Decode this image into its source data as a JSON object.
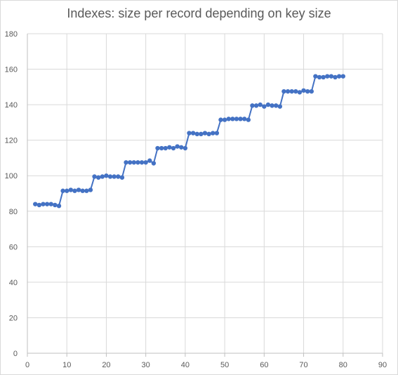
{
  "chart_data": {
    "type": "line",
    "title": "Indexes: size per record depending on key size",
    "xlabel": "",
    "ylabel": "",
    "xlim": [
      0,
      90
    ],
    "ylim": [
      0,
      180
    ],
    "xticks": [
      0,
      10,
      20,
      30,
      40,
      50,
      60,
      70,
      80,
      90
    ],
    "yticks": [
      0,
      20,
      40,
      60,
      80,
      100,
      120,
      140,
      160,
      180
    ],
    "grid": true,
    "legend": "none",
    "color": "#4472c4",
    "series": [
      {
        "x": [
          2,
          3,
          4,
          5,
          6,
          7,
          8,
          9,
          10,
          11,
          12,
          13,
          14,
          15,
          16,
          17,
          18,
          19,
          20,
          21,
          22,
          23,
          24,
          25,
          26,
          27,
          28,
          29,
          30,
          31,
          32,
          33,
          34,
          35,
          36,
          37,
          38,
          39,
          40,
          41,
          42,
          43,
          44,
          45,
          46,
          47,
          48,
          49,
          50,
          51,
          52,
          53,
          54,
          55,
          56,
          57,
          58,
          59,
          60,
          61,
          62,
          63,
          64,
          65,
          66,
          67,
          68,
          69,
          70,
          71,
          72,
          73,
          74,
          75,
          76,
          77,
          78,
          79,
          80
        ],
        "values": [
          84,
          83.5,
          84,
          84,
          84,
          83.5,
          83,
          91.5,
          91.5,
          92,
          91.5,
          92,
          91.5,
          91.5,
          92,
          99.5,
          99,
          99.5,
          100,
          99.5,
          99.5,
          99.5,
          99,
          107.5,
          107.5,
          107.5,
          107.5,
          107.5,
          107.5,
          108.5,
          107,
          115.5,
          115.5,
          115.5,
          116,
          115.5,
          116.5,
          116,
          115.5,
          124,
          124,
          123.5,
          123.5,
          124,
          123.5,
          124,
          124,
          131.5,
          131.5,
          132,
          132,
          132,
          132,
          132,
          131.5,
          139.5,
          139.5,
          140,
          139,
          140,
          139.5,
          139.5,
          139,
          147.5,
          147.5,
          147.5,
          147.5,
          147,
          148,
          147.5,
          147.5,
          156,
          155.5,
          155.5,
          156,
          156,
          155.5,
          156,
          156
        ]
      }
    ]
  }
}
